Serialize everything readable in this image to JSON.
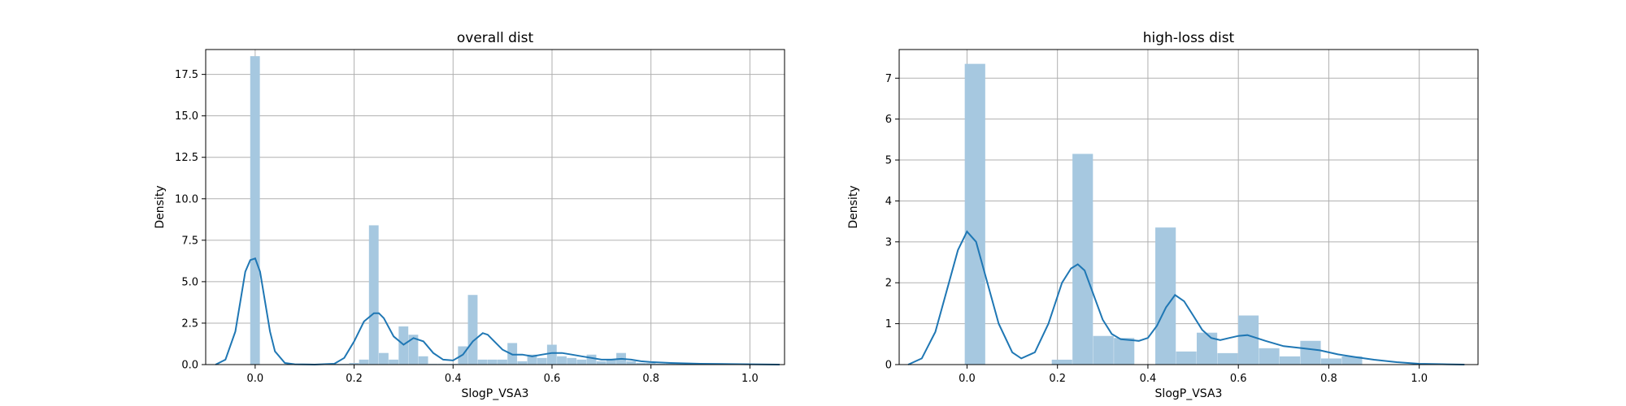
{
  "chart_data": [
    {
      "type": "bar",
      "title": "overall dist",
      "xlabel": "SlogP_VSA3",
      "ylabel": "Density",
      "xlim": [
        -0.1,
        1.07
      ],
      "ylim": [
        0,
        19.0
      ],
      "grid": true,
      "xticks": [
        0.0,
        0.2,
        0.4,
        0.6,
        0.8,
        1.0
      ],
      "xtick_labels": [
        "0.0",
        "0.2",
        "0.4",
        "0.6",
        "0.8",
        "1.0"
      ],
      "yticks": [
        0.0,
        2.5,
        5.0,
        7.5,
        10.0,
        12.5,
        15.0,
        17.5
      ],
      "ytick_labels": [
        "0.0",
        "2.5",
        "5.0",
        "7.5",
        "10.0",
        "12.5",
        "15.0",
        "17.5"
      ],
      "bar_color": "#a6c8e0",
      "line_color": "#1f77b4",
      "histogram": {
        "bin_width": 0.02,
        "bin_starts": [
          -0.01,
          0.15,
          0.17,
          0.19,
          0.21,
          0.23,
          0.25,
          0.27,
          0.29,
          0.31,
          0.33,
          0.35,
          0.37,
          0.39,
          0.41,
          0.43,
          0.45,
          0.47,
          0.49,
          0.51,
          0.53,
          0.55,
          0.57,
          0.59,
          0.61,
          0.63,
          0.65,
          0.67,
          0.69,
          0.71,
          0.73,
          0.75,
          0.77,
          0.79,
          0.81,
          0.83,
          0.85
        ],
        "heights": [
          18.6,
          0.05,
          0.05,
          0.1,
          0.3,
          8.4,
          0.7,
          0.3,
          2.3,
          1.8,
          0.5,
          0.05,
          0.05,
          0.05,
          1.1,
          4.2,
          0.3,
          0.3,
          0.3,
          1.3,
          0.2,
          0.6,
          0.4,
          1.2,
          0.5,
          0.4,
          0.3,
          0.6,
          0.2,
          0.3,
          0.7,
          0.2,
          0.1,
          0.1,
          0.05,
          0.05,
          0.05
        ]
      },
      "kde": {
        "x": [
          -0.08,
          -0.06,
          -0.04,
          -0.03,
          -0.02,
          -0.01,
          0.0,
          0.01,
          0.02,
          0.03,
          0.04,
          0.06,
          0.08,
          0.12,
          0.16,
          0.18,
          0.2,
          0.22,
          0.24,
          0.25,
          0.26,
          0.28,
          0.3,
          0.32,
          0.34,
          0.36,
          0.38,
          0.4,
          0.42,
          0.44,
          0.46,
          0.47,
          0.48,
          0.5,
          0.52,
          0.54,
          0.56,
          0.58,
          0.6,
          0.62,
          0.64,
          0.66,
          0.68,
          0.7,
          0.72,
          0.74,
          0.76,
          0.78,
          0.8,
          0.84,
          0.9,
          0.96,
          1.02,
          1.06
        ],
        "y": [
          0.0,
          0.3,
          2.0,
          3.8,
          5.6,
          6.3,
          6.4,
          5.6,
          3.8,
          2.0,
          0.8,
          0.1,
          0.02,
          0.0,
          0.05,
          0.4,
          1.4,
          2.6,
          3.1,
          3.1,
          2.8,
          1.7,
          1.2,
          1.6,
          1.4,
          0.7,
          0.3,
          0.25,
          0.6,
          1.4,
          1.9,
          1.8,
          1.5,
          0.9,
          0.6,
          0.6,
          0.5,
          0.6,
          0.7,
          0.7,
          0.6,
          0.5,
          0.4,
          0.3,
          0.3,
          0.35,
          0.3,
          0.2,
          0.15,
          0.1,
          0.05,
          0.03,
          0.01,
          0.0
        ]
      }
    },
    {
      "type": "bar",
      "title": "high-loss dist",
      "xlabel": "SlogP_VSA3",
      "ylabel": "Density",
      "xlim": [
        -0.15,
        1.13
      ],
      "ylim": [
        0,
        7.7
      ],
      "grid": true,
      "xticks": [
        0.0,
        0.2,
        0.4,
        0.6,
        0.8,
        1.0
      ],
      "xtick_labels": [
        "0.0",
        "0.2",
        "0.4",
        "0.6",
        "0.8",
        "1.0"
      ],
      "yticks": [
        0,
        1,
        2,
        3,
        4,
        5,
        6,
        7
      ],
      "ytick_labels": [
        "0",
        "1",
        "2",
        "3",
        "4",
        "5",
        "6",
        "7"
      ],
      "bar_color": "#a6c8e0",
      "line_color": "#1f77b4",
      "histogram": {
        "bin_width": 0.0458,
        "bin_starts": [
          -0.005,
          0.1874,
          0.2332,
          0.279,
          0.3248,
          0.4164,
          0.4622,
          0.508,
          0.5538,
          0.5996,
          0.6454,
          0.6912,
          0.737,
          0.7828,
          0.8286
        ],
        "heights": [
          7.35,
          0.12,
          5.15,
          0.7,
          0.65,
          3.35,
          0.32,
          0.78,
          0.28,
          1.2,
          0.4,
          0.2,
          0.58,
          0.15,
          0.2
        ]
      },
      "kde": {
        "x": [
          -0.13,
          -0.1,
          -0.07,
          -0.04,
          -0.02,
          0.0,
          0.02,
          0.04,
          0.07,
          0.1,
          0.12,
          0.15,
          0.18,
          0.21,
          0.23,
          0.245,
          0.26,
          0.28,
          0.3,
          0.32,
          0.34,
          0.36,
          0.38,
          0.4,
          0.42,
          0.44,
          0.46,
          0.48,
          0.5,
          0.52,
          0.54,
          0.56,
          0.58,
          0.6,
          0.62,
          0.64,
          0.66,
          0.7,
          0.74,
          0.78,
          0.82,
          0.86,
          0.9,
          0.95,
          1.0,
          1.05,
          1.1
        ],
        "y": [
          0.0,
          0.15,
          0.8,
          2.0,
          2.8,
          3.25,
          3.0,
          2.2,
          1.0,
          0.3,
          0.15,
          0.3,
          1.0,
          2.0,
          2.35,
          2.45,
          2.3,
          1.7,
          1.1,
          0.75,
          0.62,
          0.6,
          0.58,
          0.65,
          0.95,
          1.4,
          1.7,
          1.55,
          1.2,
          0.85,
          0.65,
          0.6,
          0.65,
          0.7,
          0.72,
          0.65,
          0.58,
          0.45,
          0.4,
          0.35,
          0.25,
          0.18,
          0.12,
          0.06,
          0.02,
          0.01,
          0.0
        ]
      }
    }
  ]
}
